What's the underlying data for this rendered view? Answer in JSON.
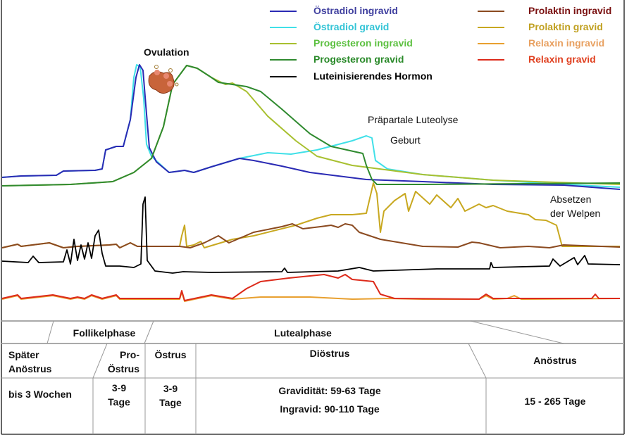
{
  "legend": [
    {
      "label": "Östradiol ingravid",
      "line_color": "#2a2ab4",
      "text_color": "#3f3f9f"
    },
    {
      "label": "Östradiol gravid",
      "line_color": "#40e0e8",
      "text_color": "#33c4d6"
    },
    {
      "label": "Progesteron ingravid",
      "line_color": "#a8c030",
      "text_color": "#5cc040"
    },
    {
      "label": "Progesteron gravid",
      "line_color": "#2f8a2f",
      "text_color": "#2a8a2a"
    },
    {
      "label": "Luteinisierendes Hormon",
      "line_color": "#000000",
      "text_color": "#000000"
    },
    {
      "label": "Prolaktin ingravid",
      "line_color": "#8b4a20",
      "text_color": "#7a1010"
    },
    {
      "label": "Prolaktin gravid",
      "line_color": "#c8a820",
      "text_color": "#c0a020"
    },
    {
      "label": "Relaxin ingravid",
      "line_color": "#e8a030",
      "text_color": "#e8a060"
    },
    {
      "label": "Relaxin gravid",
      "line_color": "#dd2a1a",
      "text_color": "#e04020"
    }
  ],
  "annotations": {
    "ovulation": "Ovulation",
    "luteolysis": "Präpartale Luteolyse",
    "birth": "Geburt",
    "weaning_1": "Absetzen",
    "weaning_2": "der Welpen"
  },
  "table": {
    "phases": {
      "follicular": "Follikelphase",
      "luteal": "Lutealphase"
    },
    "stages": [
      {
        "name_1": "Später",
        "name_2": "Anöstrus",
        "duration_1": "bis 3 Wochen"
      },
      {
        "name_1": "Pro-",
        "name_2": "Östrus",
        "duration_1": "3-9",
        "duration_2": "Tage"
      },
      {
        "name_1": "Östrus",
        "duration_1": "3-9",
        "duration_2": "Tage"
      },
      {
        "name_1": "Diöstrus",
        "duration_1": "Gravidität: 59-63 Tage",
        "duration_2": "Ingravid: 90-110 Tage"
      },
      {
        "name_1": "Anöstrus",
        "duration_1": "15 - 265 Tage"
      }
    ]
  }
}
